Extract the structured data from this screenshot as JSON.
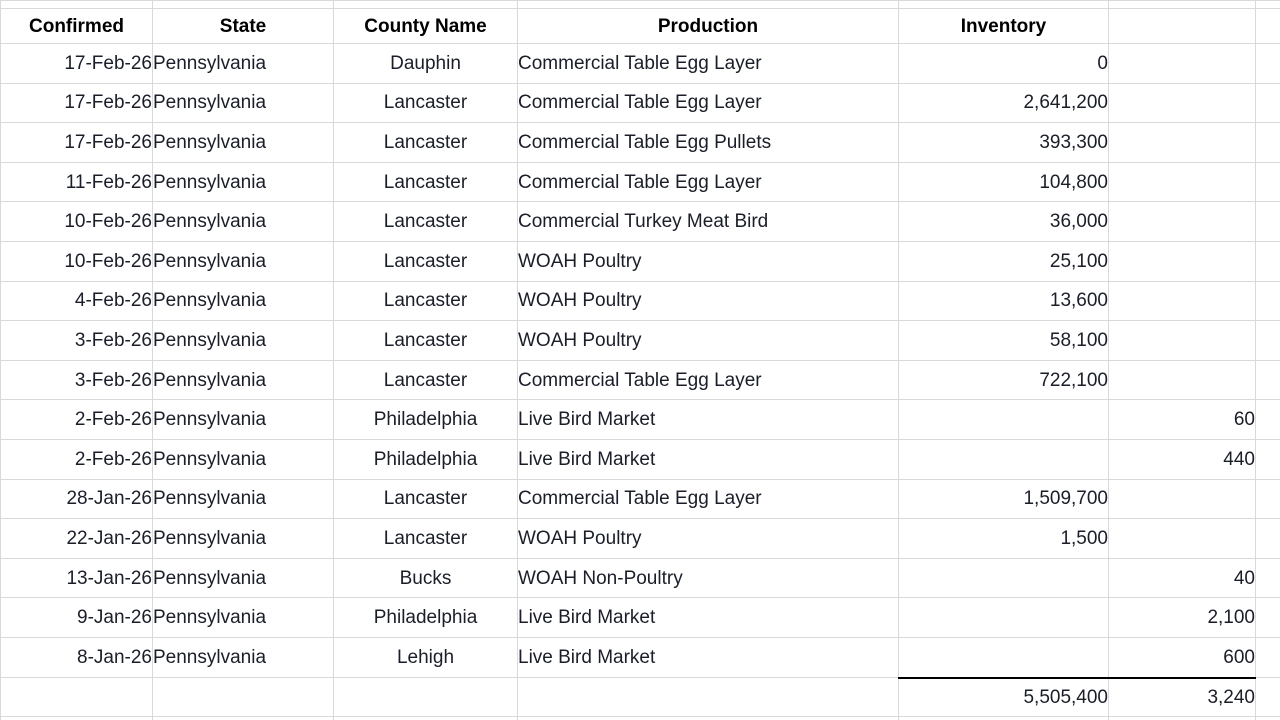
{
  "table": {
    "columns": [
      "Confirmed",
      "State",
      "County Name",
      "Production",
      "Inventory",
      "",
      ""
    ],
    "rows": [
      {
        "confirmed": "17-Feb-26",
        "state": "Pennsylvania",
        "county": "Dauphin",
        "production": "Commercial Table Egg Layer",
        "inventory": "0",
        "count": "",
        "color": "default"
      },
      {
        "confirmed": "17-Feb-26",
        "state": "Pennsylvania",
        "county": "Lancaster",
        "production": "Commercial Table Egg Layer",
        "inventory": "2,641,200",
        "count": "",
        "color": "default"
      },
      {
        "confirmed": "17-Feb-26",
        "state": "Pennsylvania",
        "county": "Lancaster",
        "production": "Commercial Table Egg Pullets",
        "inventory": "393,300",
        "count": "",
        "color": "default"
      },
      {
        "confirmed": "11-Feb-26",
        "state": "Pennsylvania",
        "county": "Lancaster",
        "production": "Commercial Table Egg Layer",
        "inventory": "104,800",
        "count": "",
        "color": "default"
      },
      {
        "confirmed": "10-Feb-26",
        "state": "Pennsylvania",
        "county": "Lancaster",
        "production": "Commercial Turkey Meat Bird",
        "inventory": "36,000",
        "count": "",
        "color": "default"
      },
      {
        "confirmed": "10-Feb-26",
        "state": "Pennsylvania",
        "county": "Lancaster",
        "production": "WOAH Poultry",
        "inventory": "25,100",
        "count": "",
        "color": "default"
      },
      {
        "confirmed": "4-Feb-26",
        "state": "Pennsylvania",
        "county": "Lancaster",
        "production": "WOAH Poultry",
        "inventory": "13,600",
        "count": "",
        "color": "default"
      },
      {
        "confirmed": "3-Feb-26",
        "state": "Pennsylvania",
        "county": "Lancaster",
        "production": "WOAH Poultry",
        "inventory": "58,100",
        "count": "",
        "color": "default"
      },
      {
        "confirmed": "3-Feb-26",
        "state": "Pennsylvania",
        "county": "Lancaster",
        "production": "Commercial Table Egg Layer",
        "inventory": "722,100",
        "count": "",
        "color": "default"
      },
      {
        "confirmed": "2-Feb-26",
        "state": "Pennsylvania",
        "county": "Philadelphia",
        "production": "Live Bird Market",
        "inventory": "",
        "count": "60",
        "color": "red"
      },
      {
        "confirmed": "2-Feb-26",
        "state": "Pennsylvania",
        "county": "Philadelphia",
        "production": "Live Bird Market",
        "inventory": "",
        "count": "440",
        "color": "red"
      },
      {
        "confirmed": "28-Jan-26",
        "state": "Pennsylvania",
        "county": "Lancaster",
        "production": "Commercial Table Egg Layer",
        "inventory": "1,509,700",
        "count": "",
        "color": "default"
      },
      {
        "confirmed": "22-Jan-26",
        "state": "Pennsylvania",
        "county": "Lancaster",
        "production": "WOAH Poultry",
        "inventory": "1,500",
        "count": "",
        "color": "default"
      },
      {
        "confirmed": "13-Jan-26",
        "state": "Pennsylvania",
        "county": "Bucks",
        "production": "WOAH Non-Poultry",
        "inventory": "",
        "count": "40",
        "color": "orange"
      },
      {
        "confirmed": "9-Jan-26",
        "state": "Pennsylvania",
        "county": "Philadelphia",
        "production": "Live Bird Market",
        "inventory": "",
        "count": "2,100",
        "color": "red"
      },
      {
        "confirmed": "8-Jan-26",
        "state": "Pennsylvania",
        "county": "Lehigh",
        "production": "Live Bird Market",
        "inventory": "",
        "count": "600",
        "color": "red"
      }
    ],
    "totals": {
      "inventory_total": "5,505,400",
      "count_total": "3,240"
    }
  },
  "colors": {
    "red": "#f2170c",
    "orange": "#c55a11",
    "text": "#1a1e28",
    "gridline": "#d9d9d9",
    "total_border": "#000000"
  }
}
